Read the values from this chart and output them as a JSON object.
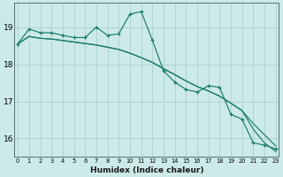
{
  "title": "",
  "xlabel": "Humidex (Indice chaleur)",
  "ylabel": "",
  "background_color": "#cceae8",
  "grid_color": "#b0d4d0",
  "line_color": "#1a7a6e",
  "x_values": [
    0,
    1,
    2,
    3,
    4,
    5,
    6,
    7,
    8,
    9,
    10,
    11,
    12,
    13,
    14,
    15,
    16,
    17,
    18,
    19,
    20,
    21,
    22,
    23
  ],
  "y_main": [
    18.55,
    18.95,
    18.85,
    18.85,
    18.78,
    18.72,
    18.72,
    19.0,
    18.78,
    18.82,
    19.35,
    19.42,
    18.65,
    17.82,
    17.52,
    17.32,
    17.25,
    17.42,
    17.38,
    16.65,
    16.52,
    15.88,
    15.82,
    15.72
  ],
  "y_line1": [
    18.55,
    18.75,
    18.7,
    18.68,
    18.64,
    18.6,
    18.56,
    18.52,
    18.46,
    18.4,
    18.3,
    18.18,
    18.05,
    17.88,
    17.72,
    17.55,
    17.4,
    17.28,
    17.14,
    16.95,
    16.75,
    16.4,
    16.1,
    15.8
  ],
  "y_line2": [
    18.55,
    18.75,
    18.7,
    18.68,
    18.64,
    18.6,
    18.56,
    18.52,
    18.46,
    18.4,
    18.3,
    18.18,
    18.05,
    17.88,
    17.72,
    17.55,
    17.4,
    17.28,
    17.14,
    16.95,
    16.75,
    16.25,
    15.88,
    15.65
  ],
  "ylim": [
    15.5,
    19.65
  ],
  "yticks": [
    16,
    17,
    18,
    19
  ],
  "xticks": [
    0,
    1,
    2,
    3,
    4,
    5,
    6,
    7,
    8,
    9,
    10,
    11,
    12,
    13,
    14,
    15,
    16,
    17,
    18,
    19,
    20,
    21,
    22,
    23
  ]
}
